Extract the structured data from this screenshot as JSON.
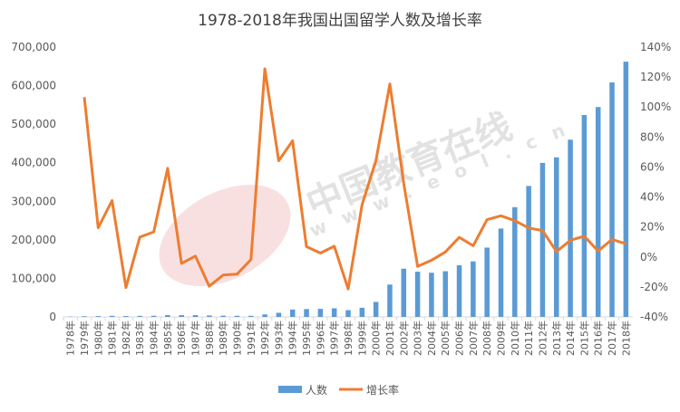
{
  "chart_data": {
    "type": "bar+line",
    "title": "1978-2018年我国出国留学人数及增长率",
    "categories": [
      "1978年",
      "1979年",
      "1980年",
      "1981年",
      "1982年",
      "1983年",
      "1984年",
      "1985年",
      "1986年",
      "1987年",
      "1988年",
      "1989年",
      "1990年",
      "1991年",
      "1992年",
      "1993年",
      "1994年",
      "1995年",
      "1996年",
      "1997年",
      "1998年",
      "1999年",
      "2000年",
      "2001年",
      "2002年",
      "2003年",
      "2004年",
      "2005年",
      "2006年",
      "2007年",
      "2008年",
      "2009年",
      "2010年",
      "2011年",
      "2012年",
      "2013年",
      "2014年",
      "2015年",
      "2016年",
      "2017年",
      "2018年"
    ],
    "series": [
      {
        "name": "人数",
        "axis": "left",
        "type": "bar",
        "color": "#5b9bd5",
        "values": [
          860,
          1777,
          2124,
          2922,
          2326,
          2633,
          3073,
          4888,
          4676,
          4703,
          3786,
          3329,
          2950,
          2900,
          6540,
          10742,
          19071,
          20381,
          20905,
          22410,
          17622,
          23749,
          38989,
          83973,
          125179,
          117307,
          114682,
          118515,
          134000,
          144000,
          179800,
          229300,
          284700,
          339700,
          399600,
          413900,
          459800,
          523700,
          544500,
          608400,
          662100
        ]
      },
      {
        "name": "增长率",
        "axis": "right",
        "type": "line",
        "color": "#ed7d31",
        "values": [
          null,
          106.6,
          19.5,
          37.6,
          -20.4,
          13.2,
          16.7,
          59.1,
          -4.3,
          0.6,
          -19.5,
          -12.1,
          -11.4,
          -1.7,
          125.5,
          64.2,
          77.5,
          6.9,
          2.6,
          7.2,
          -21.4,
          34.8,
          64.2,
          115.4,
          49.1,
          -6.3,
          -2.2,
          3.3,
          13.1,
          7.5,
          24.9,
          27.5,
          24.2,
          19.3,
          17.6,
          3.6,
          11.1,
          13.9,
          4.0,
          11.7,
          8.8
        ]
      }
    ],
    "left_axis": {
      "min": 0,
      "max": 700000,
      "step": 100000,
      "tick_labels": [
        "0",
        "100,000",
        "200,000",
        "300,000",
        "400,000",
        "500,000",
        "600,000",
        "700,000"
      ]
    },
    "right_axis": {
      "min": -40,
      "max": 140,
      "step": 20,
      "tick_labels": [
        "-40%",
        "-20%",
        "0%",
        "20%",
        "40%",
        "60%",
        "80%",
        "100%",
        "120%",
        "140%"
      ]
    },
    "legend_position": "bottom",
    "grid": false
  },
  "watermark": {
    "text": "中国教育在线",
    "subtext": "w w w . e o l . c n"
  }
}
